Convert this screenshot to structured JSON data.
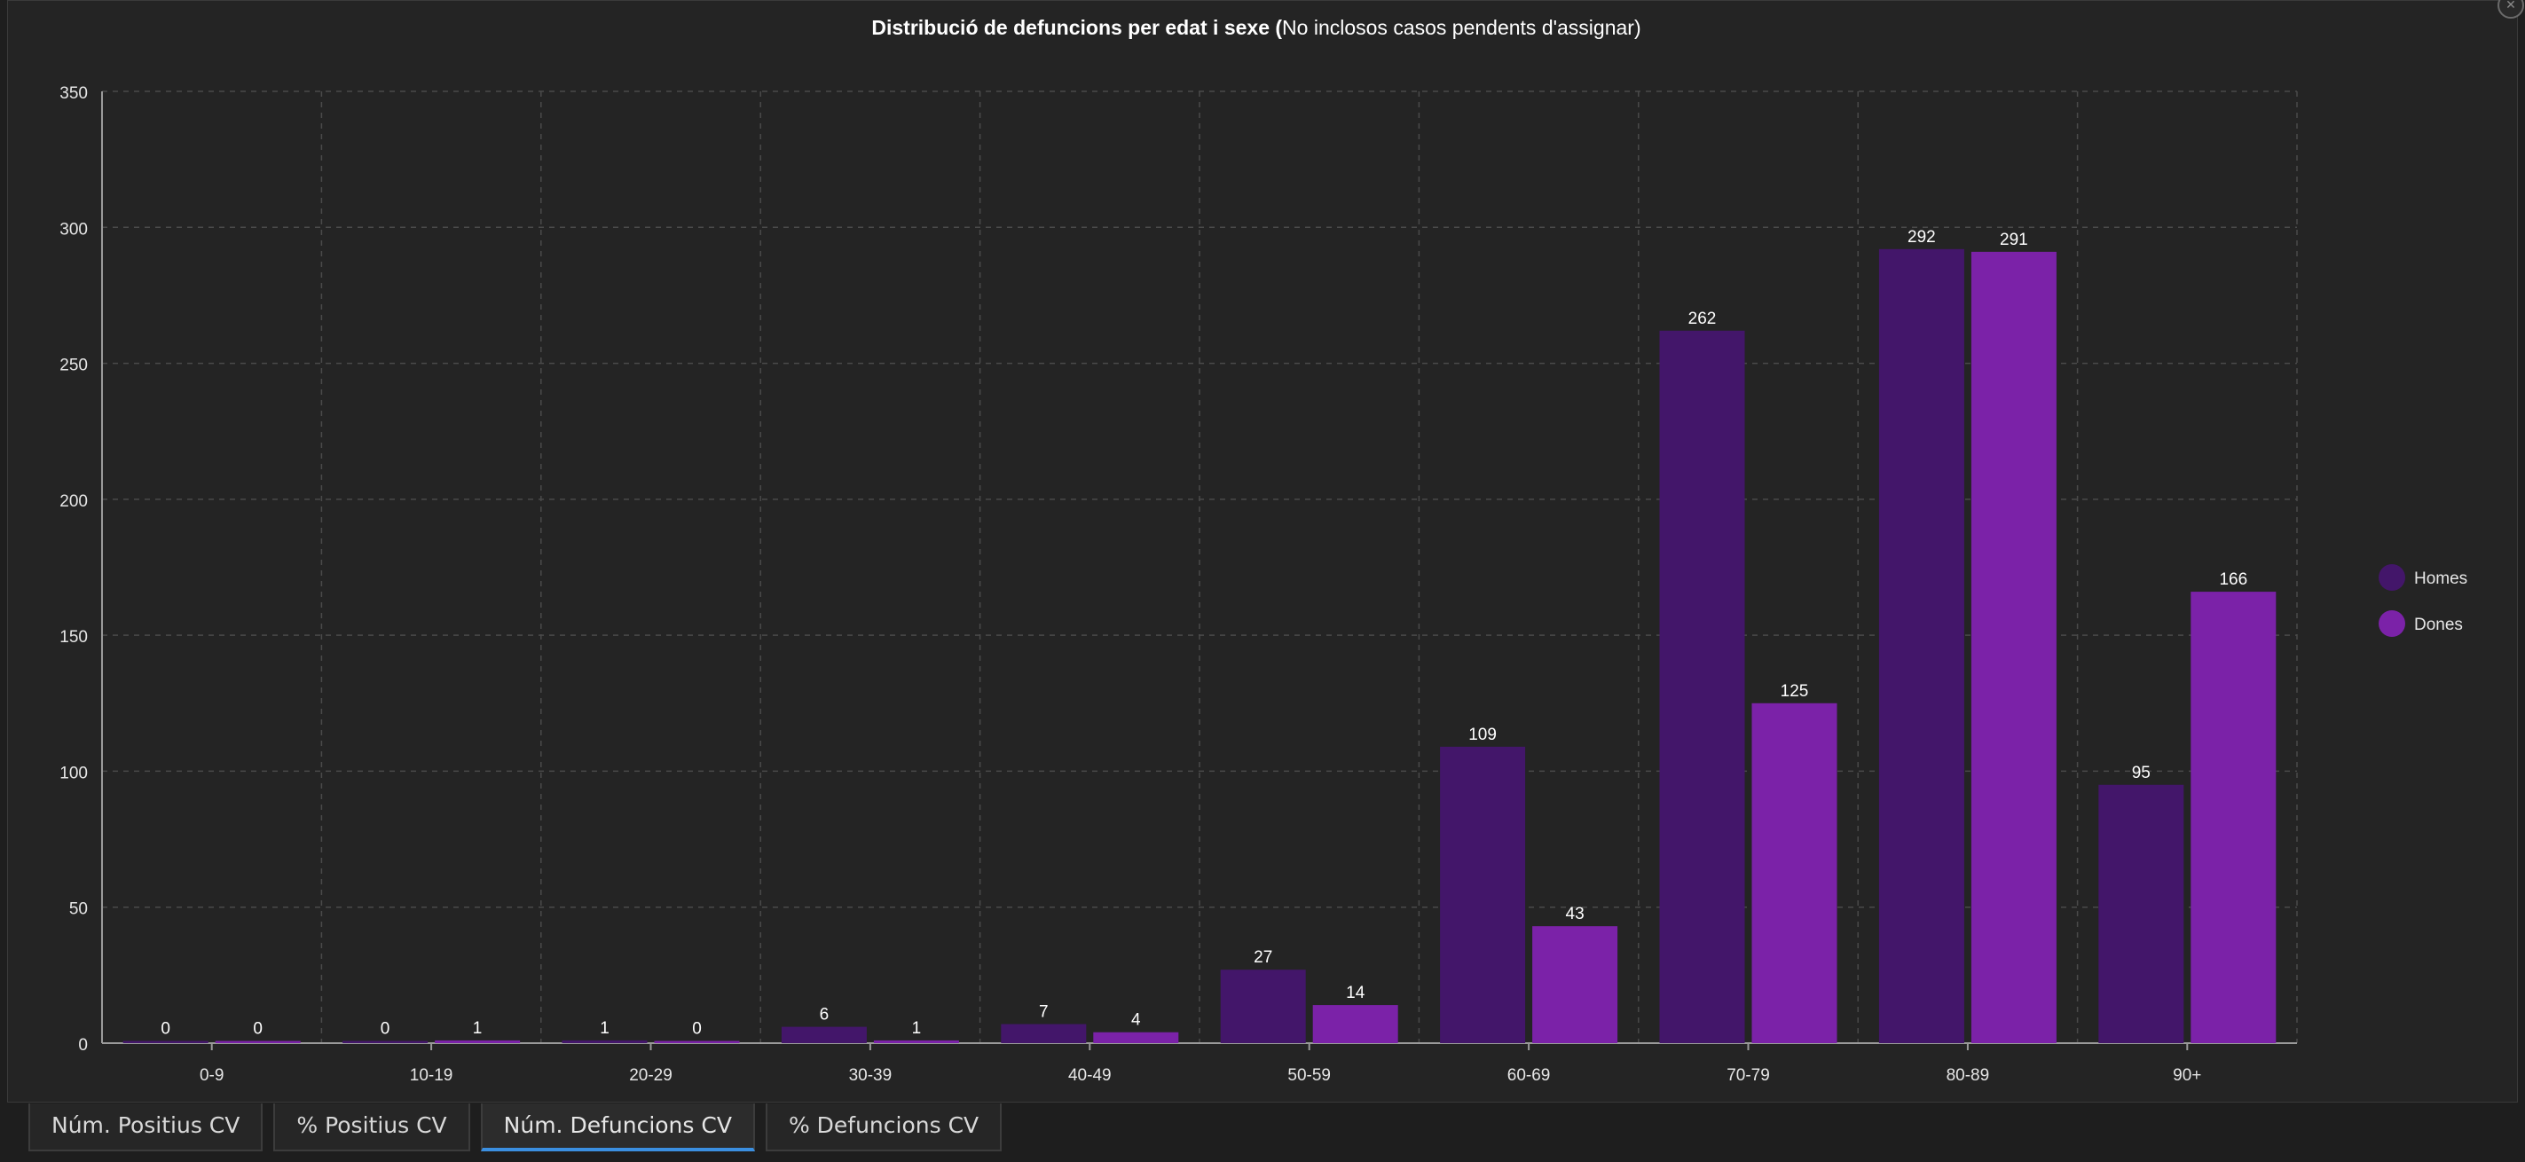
{
  "chart_data": {
    "type": "bar",
    "title": {
      "bold": "Distribució de defuncions per edat i sexe (",
      "normal": "No inclosos casos pendents d'assignar)"
    },
    "categories": [
      "0-9",
      "10-19",
      "20-29",
      "30-39",
      "40-49",
      "50-59",
      "60-69",
      "70-79",
      "80-89",
      "90+"
    ],
    "series": [
      {
        "name": "Homes",
        "color": "#43166a",
        "values": [
          0,
          0,
          1,
          6,
          7,
          27,
          109,
          262,
          292,
          95
        ]
      },
      {
        "name": "Dones",
        "color": "#7b22a8",
        "values": [
          0,
          1,
          0,
          1,
          4,
          14,
          43,
          125,
          291,
          166
        ]
      }
    ],
    "ylim": [
      0,
      350
    ],
    "yticks": [
      0,
      50,
      100,
      150,
      200,
      250,
      300,
      350
    ],
    "xlabel": "",
    "ylabel": "",
    "grid": true,
    "legend": "right"
  },
  "tabs": [
    {
      "label": "Núm. Positius CV",
      "active": false
    },
    {
      "label": "% Positius CV",
      "active": false
    },
    {
      "label": "Núm. Defuncions CV",
      "active": true
    },
    {
      "label": "% Defuncions CV",
      "active": false
    }
  ],
  "close_icon": "close-icon"
}
